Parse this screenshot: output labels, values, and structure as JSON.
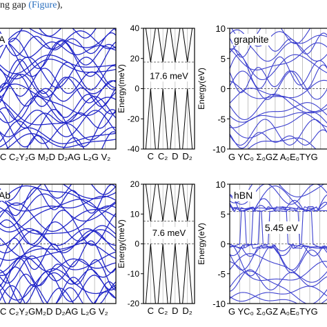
{
  "caption": {
    "text": "ng gap",
    "suffix": "",
    "link": "(Figure",
    "tail": "),"
  },
  "chart_data": [
    {
      "id": "A-bands",
      "type": "line",
      "panel_label": "A",
      "xlabel": "",
      "ylabel": "",
      "xtick_labels": [
        "C",
        "C",
        "Y",
        "G",
        "M",
        "D",
        "D",
        "A",
        "G",
        "L",
        "G",
        "V"
      ],
      "xtick_text": "C  C₂Y₂G M₂D  D₂AG  L₂G  V₂",
      "series_color": "#1f24c8",
      "fermi_line": "dashed"
    },
    {
      "id": "A-zoom",
      "type": "line",
      "ylabel": "Energy(meV)",
      "ylim": [
        -40,
        40
      ],
      "yticks": [
        -40,
        -20,
        0,
        20,
        40
      ],
      "xtick_labels": [
        "C",
        "C₂",
        "D",
        "D₂"
      ],
      "gap_label": "17.6 meV",
      "gap_edges": [
        17.6,
        -0.0
      ]
    },
    {
      "id": "graphite",
      "type": "line",
      "panel_label": "graphite",
      "ylabel": "Energy(eV)",
      "ylim": [
        -10,
        10
      ],
      "yticks": [
        -10,
        -5,
        0,
        5,
        10
      ],
      "xtick_text": "G  YC₀ Σ₀GZ  A₀E₀TYG",
      "series_color": "#3b3fcf"
    },
    {
      "id": "B-bands",
      "type": "line",
      "panel_label": "Ab",
      "xtick_text": "C  C₂Y₂GM₂D  D₂AG  L₂G  V₂",
      "series_color": "#1f24c8"
    },
    {
      "id": "B-zoom",
      "type": "line",
      "ylabel": "Energy(meV)",
      "ylim": [
        -20,
        20
      ],
      "yticks": [
        -20,
        -10,
        0,
        10,
        20
      ],
      "xtick_labels": [
        "C",
        "C₂",
        "D",
        "D₂"
      ],
      "gap_label": "7.6 meV",
      "gap_edges": [
        7.6,
        0.0
      ]
    },
    {
      "id": "hBN",
      "type": "line",
      "panel_label": "hBN",
      "ylabel": "Energy(eV)",
      "ylim": [
        -10,
        10
      ],
      "yticks": [
        -10,
        -5,
        0,
        5,
        10
      ],
      "xtick_text": "G YC₀ Σ₀GZ  A₀E₀TYG",
      "gap_label": "5.45 eV",
      "gap_edges": [
        5.45,
        0.0
      ],
      "series_color": "#3b3fcf"
    }
  ]
}
